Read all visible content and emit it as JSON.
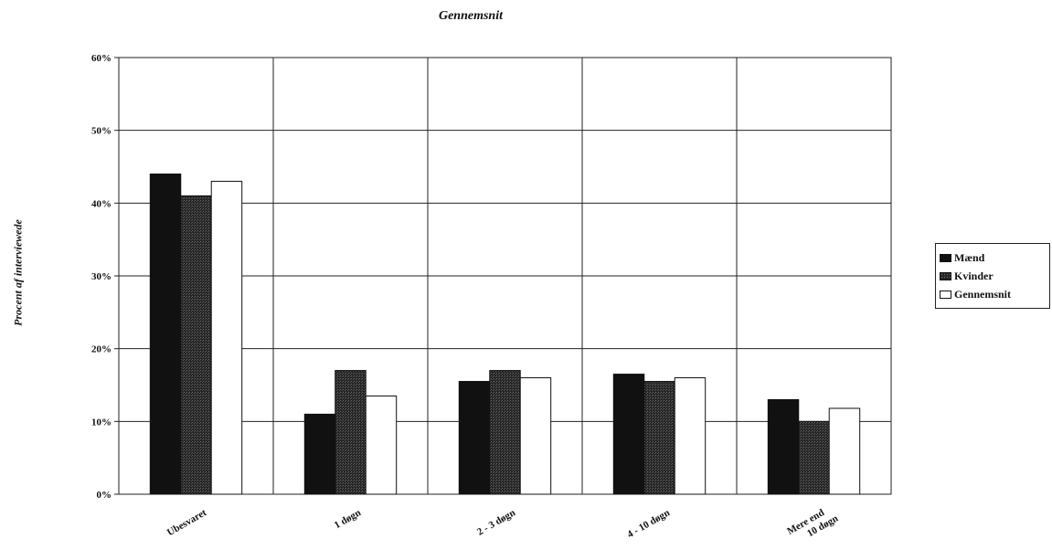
{
  "chart_data": {
    "type": "bar",
    "title": "Gennemsnit",
    "ylabel": "Procent af interviewede",
    "xlabel": "",
    "categories": [
      "Ubesvaret",
      "1 døgn",
      "2 - 3 døgn",
      "4 - 10 døgn",
      "Mere end 10 døgn"
    ],
    "category_lines": [
      [
        "Ubesvaret"
      ],
      [
        "1 døgn"
      ],
      [
        "2 - 3 døgn"
      ],
      [
        "4 - 10 døgn"
      ],
      [
        "Mere end",
        "10 døgn"
      ]
    ],
    "series": [
      {
        "name": "Mænd",
        "values": [
          44,
          11,
          15.5,
          16.5,
          13
        ],
        "color": "#111111"
      },
      {
        "name": "Kvinder",
        "values": [
          41,
          17,
          17,
          15.5,
          10
        ],
        "color": "#2a2a2a"
      },
      {
        "name": "Gennemsnit",
        "values": [
          43,
          13.5,
          16,
          16,
          11.8
        ],
        "color": "#ffffff"
      }
    ],
    "ylim": [
      0,
      60
    ],
    "yticks": [
      "0%",
      "10%",
      "20%",
      "30%",
      "40%",
      "50%",
      "60%"
    ],
    "grid": true,
    "legend": "right"
  }
}
